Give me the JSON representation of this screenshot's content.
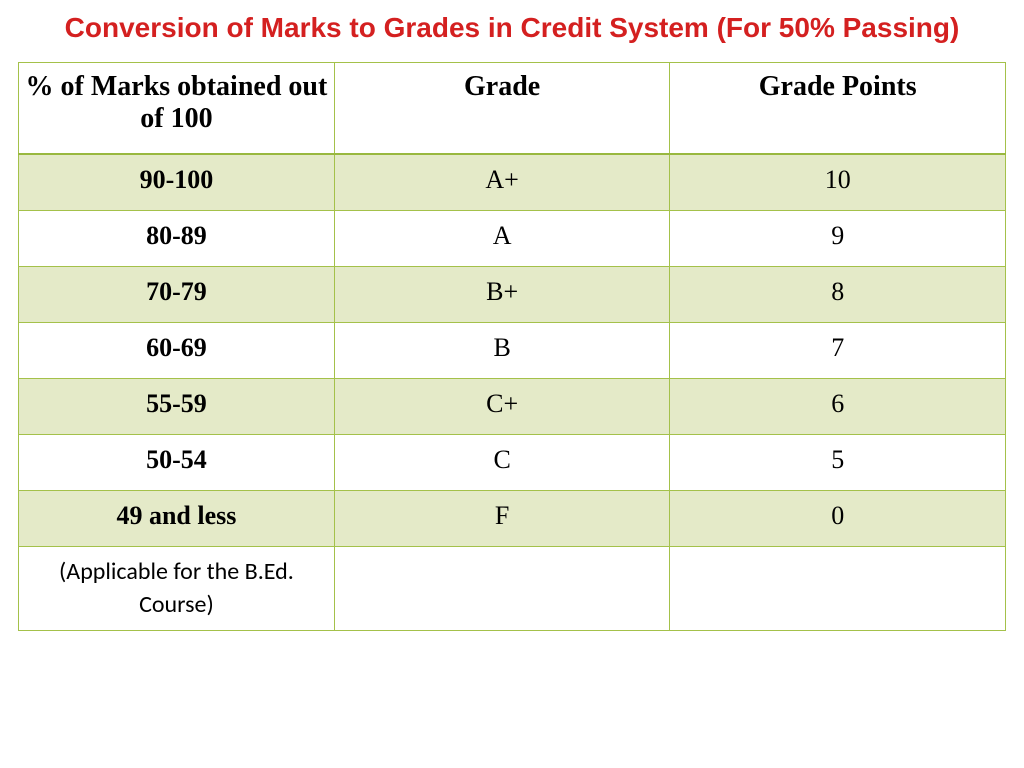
{
  "title": "Conversion of Marks to  Grades in Credit System (For 50% Passing)",
  "title_color": "#d42020",
  "title_fontsize": 28,
  "table": {
    "border_color": "#a4c14a",
    "shaded_row_color": "#e4eac8",
    "plain_row_color": "#ffffff",
    "header_fontsize": 28,
    "cell_fontsize": 26,
    "columns": [
      {
        "key": "marks",
        "label": "% of Marks obtained out of  100",
        "width": "32%"
      },
      {
        "key": "grade",
        "label": "Grade",
        "width": "34%"
      },
      {
        "key": "points",
        "label": "Grade Points",
        "width": "34%"
      }
    ],
    "rows": [
      {
        "marks": "90-100",
        "grade": "A+",
        "points": "10",
        "shaded": true
      },
      {
        "marks": "80-89",
        "grade": "A",
        "points": "9",
        "shaded": false
      },
      {
        "marks": "70-79",
        "grade": "B+",
        "points": "8",
        "shaded": true
      },
      {
        "marks": "60-69",
        "grade": "B",
        "points": "7",
        "shaded": false
      },
      {
        "marks": "55-59",
        "grade": "C+",
        "points": "6",
        "shaded": true
      },
      {
        "marks": "50-54",
        "grade": "C",
        "points": "5",
        "shaded": false
      },
      {
        "marks": "49 and less",
        "grade": "F",
        "points": "0",
        "shaded": true
      }
    ],
    "note_row": {
      "marks": "(Applicable for the B.Ed. Course)",
      "grade": "",
      "points": "",
      "shaded": false
    }
  }
}
